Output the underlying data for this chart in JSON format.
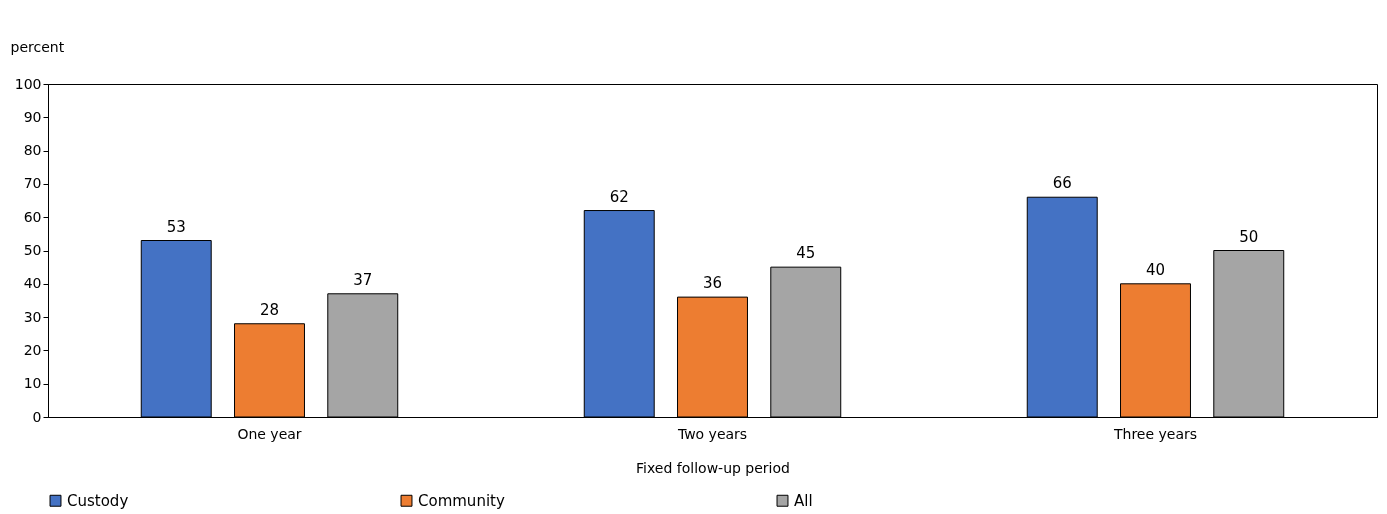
{
  "chart_data": {
    "type": "bar",
    "xlabel": "Fixed follow-up period",
    "ylabel": "percent",
    "categories": [
      "One year",
      "Two years",
      "Three years"
    ],
    "series": [
      {
        "name": "Custody",
        "color": "#4472c4",
        "values": [
          53,
          62,
          66
        ]
      },
      {
        "name": "Community",
        "color": "#ed7d31",
        "values": [
          28,
          36,
          40
        ]
      },
      {
        "name": "All",
        "color": "#a5a5a5",
        "values": [
          37,
          45,
          50
        ]
      }
    ],
    "ylim": [
      0,
      100
    ],
    "yticks": [
      0,
      10,
      20,
      30,
      40,
      50,
      60,
      70,
      80,
      90,
      100
    ],
    "data_labels": true,
    "grid": false,
    "legend": "bottom"
  }
}
